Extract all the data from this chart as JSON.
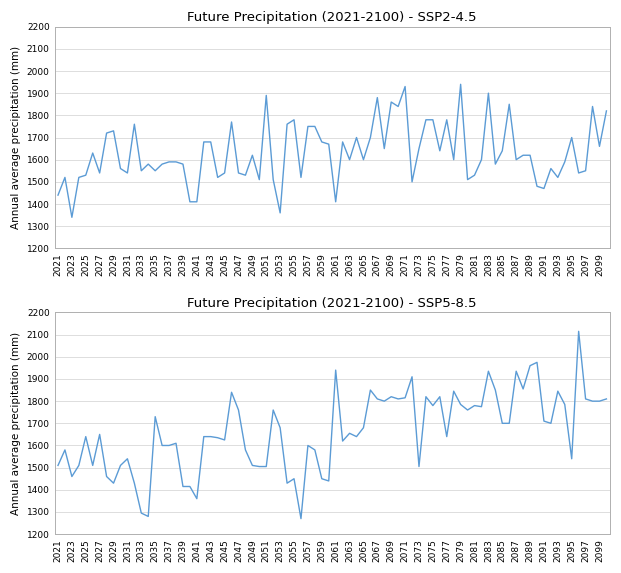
{
  "title1": "Future Precipitation (2021-2100) - SSP2-4.5",
  "title2": "Future Precipitation (2021-2100) - SSP5-8.5",
  "ylabel": "Annual average precipitation (mm)",
  "years": [
    2021,
    2022,
    2023,
    2024,
    2025,
    2026,
    2027,
    2028,
    2029,
    2030,
    2031,
    2032,
    2033,
    2034,
    2035,
    2036,
    2037,
    2038,
    2039,
    2040,
    2041,
    2042,
    2043,
    2044,
    2045,
    2046,
    2047,
    2048,
    2049,
    2050,
    2051,
    2052,
    2053,
    2054,
    2055,
    2056,
    2057,
    2058,
    2059,
    2060,
    2061,
    2062,
    2063,
    2064,
    2065,
    2066,
    2067,
    2068,
    2069,
    2070,
    2071,
    2072,
    2073,
    2074,
    2075,
    2076,
    2077,
    2078,
    2079,
    2080,
    2081,
    2082,
    2083,
    2084,
    2085,
    2086,
    2087,
    2088,
    2089,
    2090,
    2091,
    2092,
    2093,
    2094,
    2095,
    2096,
    2097,
    2098,
    2099,
    2100
  ],
  "ssp245": [
    1440,
    1520,
    1340,
    1520,
    1530,
    1630,
    1540,
    1720,
    1730,
    1560,
    1540,
    1760,
    1550,
    1580,
    1550,
    1580,
    1590,
    1590,
    1580,
    1410,
    1410,
    1680,
    1680,
    1520,
    1540,
    1770,
    1540,
    1530,
    1620,
    1510,
    1890,
    1510,
    1360,
    1760,
    1780,
    1520,
    1750,
    1750,
    1680,
    1670,
    1410,
    1680,
    1600,
    1700,
    1600,
    1700,
    1880,
    1650,
    1860,
    1840,
    1930,
    1500,
    1650,
    1780,
    1780,
    1640,
    1780,
    1600,
    1940,
    1510,
    1530,
    1600,
    1900,
    1580,
    1640,
    1850,
    1600,
    1620,
    1620,
    1480,
    1470,
    1560,
    1520,
    1590,
    1700,
    1540,
    1550,
    1840,
    1660,
    1820
  ],
  "ssp585": [
    1510,
    1580,
    1460,
    1510,
    1640,
    1510,
    1650,
    1460,
    1430,
    1510,
    1540,
    1430,
    1295,
    1280,
    1730,
    1600,
    1600,
    1610,
    1415,
    1415,
    1360,
    1640,
    1640,
    1635,
    1625,
    1840,
    1760,
    1580,
    1510,
    1505,
    1505,
    1760,
    1680,
    1430,
    1450,
    1270,
    1600,
    1580,
    1450,
    1440,
    1940,
    1620,
    1655,
    1640,
    1680,
    1850,
    1810,
    1800,
    1820,
    1810,
    1815,
    1910,
    1505,
    1820,
    1780,
    1820,
    1640,
    1845,
    1785,
    1760,
    1780,
    1775,
    1935,
    1850,
    1700,
    1700,
    1935,
    1855,
    1960,
    1975,
    1710,
    1700,
    1845,
    1785,
    1540,
    2115,
    1810,
    1800,
    1800,
    1810
  ],
  "line_color": "#5B9BD5",
  "ylim": [
    1200,
    2200
  ],
  "yticks": [
    1200,
    1300,
    1400,
    1500,
    1600,
    1700,
    1800,
    1900,
    2000,
    2100,
    2200
  ],
  "background_color": "#ffffff",
  "grid_color": "#d0d0d0",
  "spine_color": "#b0b0b0",
  "title_fontsize": 9.5,
  "label_fontsize": 7.5,
  "tick_fontsize": 6.5,
  "linewidth": 1.0
}
